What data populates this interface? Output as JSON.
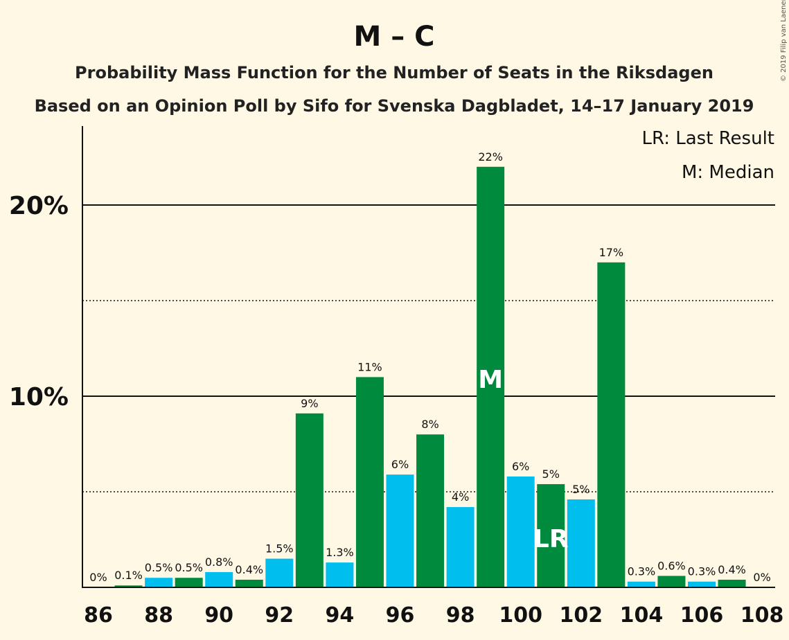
{
  "title": "M – C",
  "subtitle1": "Probability Mass Function for the Number of Seats in the Riksdagen",
  "subtitle2": "Based on an Opinion Poll by Sifo for Svenska Dagbladet, 14–17 January 2019",
  "legend": {
    "last_result": "LR: Last Result",
    "median": "M: Median"
  },
  "copyright": "© 2019 Filip van Laenen",
  "colors": {
    "background": "#fef8e4",
    "green": "#008a3e",
    "blue": "#00bfee",
    "axis": "#111111"
  },
  "chart_data": {
    "type": "bar",
    "x": [
      86,
      87,
      88,
      89,
      90,
      91,
      92,
      93,
      94,
      95,
      96,
      97,
      98,
      99,
      100,
      101,
      102,
      103,
      104,
      105,
      106,
      107,
      108
    ],
    "values": [
      0,
      0.1,
      0.5,
      0.5,
      0.8,
      0.4,
      1.5,
      9.1,
      1.3,
      11,
      5.9,
      8,
      4.2,
      22,
      5.8,
      5.4,
      4.6,
      17,
      0.3,
      0.6,
      0.3,
      0.4,
      0
    ],
    "labels": [
      "0%",
      "0.1%",
      "0.5%",
      "0.5%",
      "0.8%",
      "0.4%",
      "1.5%",
      "9%",
      "1.3%",
      "11%",
      "6%",
      "8%",
      "4%",
      "22%",
      "6%",
      "5%",
      "5%",
      "17%",
      "0.3%",
      "0.6%",
      "0.3%",
      "0.4%",
      "0%"
    ],
    "x_tick_labels": [
      "86",
      "88",
      "90",
      "92",
      "94",
      "96",
      "98",
      "100",
      "102",
      "104",
      "106",
      "108"
    ],
    "y_ticks": [
      {
        "value": 10,
        "label": "10%"
      },
      {
        "value": 20,
        "label": "20%"
      }
    ],
    "ylim": [
      0,
      24
    ],
    "minor_grid": [
      5,
      15
    ],
    "median": {
      "x": 99,
      "label": "M"
    },
    "last_result": {
      "x": 101,
      "label": "LR"
    },
    "legend_position": "top-right"
  }
}
